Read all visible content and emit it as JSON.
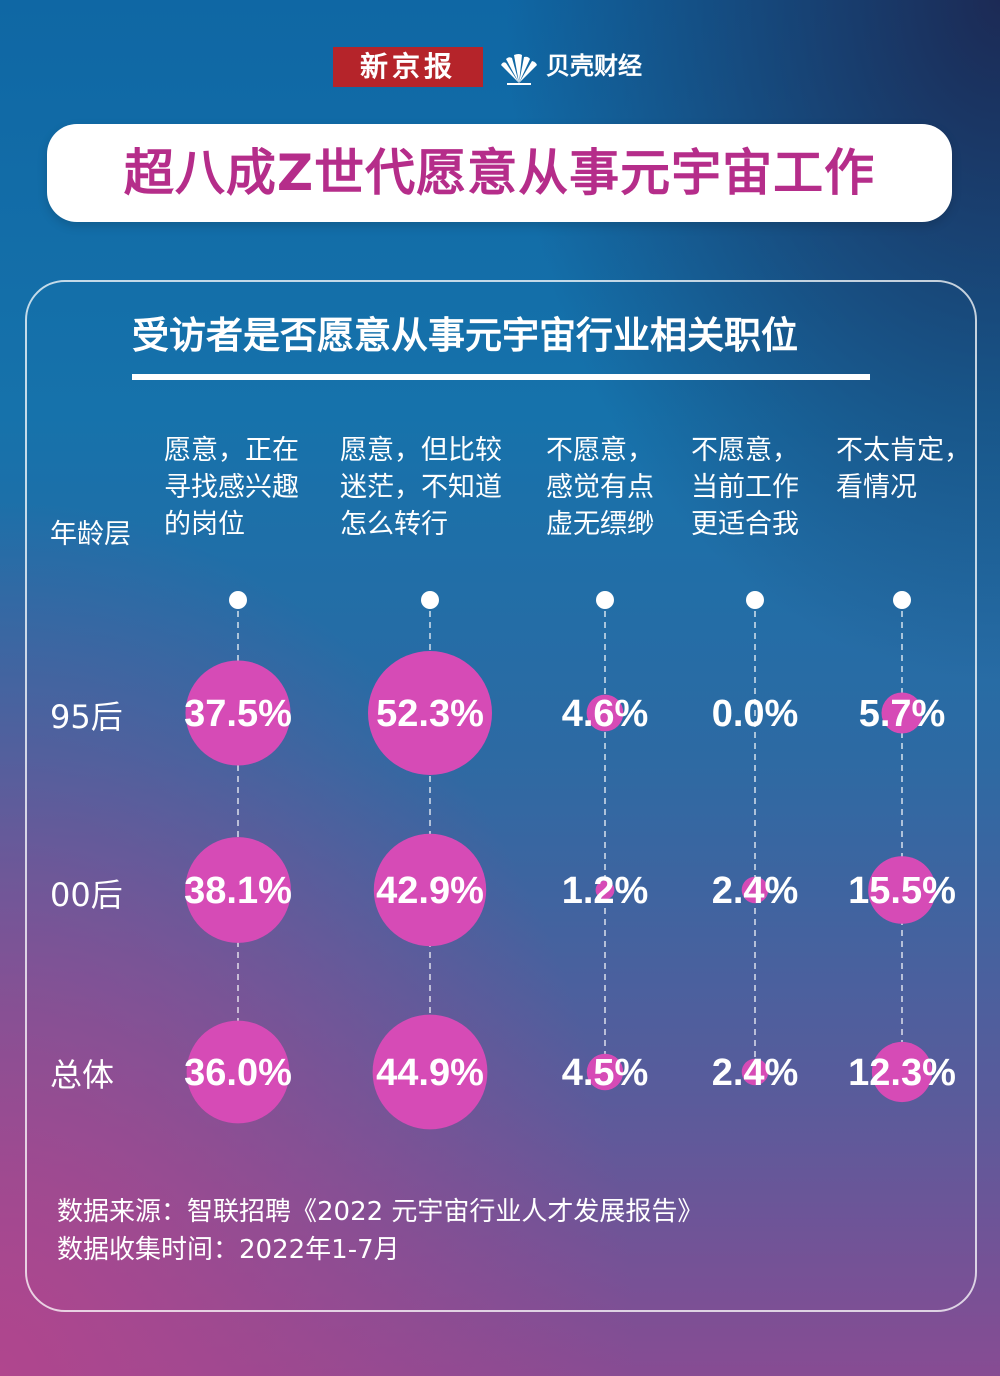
{
  "brand": {
    "newspaper": "新京报",
    "partner": "贝壳财经"
  },
  "title": "超八成Z世代愿意从事元宇宙工作",
  "subtitle": "受访者是否愿意从事元宇宙行业相关职位",
  "row_header": "年龄层",
  "columns": [
    "愿意，正在\n寻找感兴趣\n的岗位",
    "愿意，但比较\n迷茫，不知道\n怎么转行",
    "不愿意，\n感觉有点\n虚无缥缈",
    "不愿意，\n当前工作\n更适合我",
    "不太肯定，\n看情况"
  ],
  "rows": [
    "95后",
    "00后",
    "总体"
  ],
  "colors": {
    "bubble": "#d64bb6",
    "text": "#ffffff"
  },
  "chart_data": {
    "type": "bubble",
    "categories": [
      "愿意，正在寻找感兴趣的岗位",
      "愿意，但比较迷茫，不知道怎么转行",
      "不愿意，感觉有点虚无缥缈",
      "不愿意，当前工作更适合我",
      "不太肯定，看情况"
    ],
    "series": [
      {
        "name": "95后",
        "values": [
          37.5,
          52.3,
          4.6,
          0.0,
          5.7
        ],
        "labels": [
          "37.5%",
          "52.3%",
          "4.6%",
          "0.0%",
          "5.7%"
        ]
      },
      {
        "name": "00后",
        "values": [
          38.1,
          42.9,
          1.2,
          2.4,
          15.5
        ],
        "labels": [
          "38.1%",
          "42.9%",
          "1.2%",
          "2.4%",
          "15.5%"
        ]
      },
      {
        "name": "总体",
        "values": [
          36.0,
          44.9,
          4.5,
          2.4,
          12.3
        ],
        "labels": [
          "36.0%",
          "44.9%",
          "4.5%",
          "2.4%",
          "12.3%"
        ]
      }
    ]
  },
  "source": {
    "line1": "数据来源：智联招聘《2022 元宇宙行业人才发展报告》",
    "line2": "数据收集时间：2022年1-7月"
  }
}
